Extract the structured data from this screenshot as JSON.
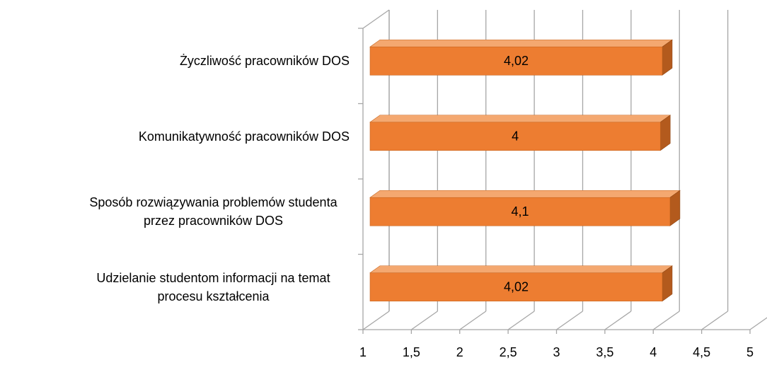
{
  "chart_data": {
    "type": "bar3d_horizontal",
    "categories": [
      "Życzliwość pracowników DOS",
      "Komunikatywność pracowników DOS",
      "Sposób rozwiązywania problemów studenta przez pracowników DOS",
      "Udzielanie studentom informacji na temat procesu kształcenia"
    ],
    "values": [
      4.02,
      4,
      4.1,
      4.02
    ],
    "value_labels": [
      "4,02",
      "4",
      "4,1",
      "4,02"
    ],
    "color": "#ed7d31",
    "xlim": [
      1,
      5
    ],
    "xticks": [
      1,
      {
        "value": 1.5,
        "label": "1,5"
      },
      2,
      {
        "value": 2.5,
        "label": "2,5"
      },
      3,
      {
        "value": 3.5,
        "label": "3,5"
      },
      4,
      {
        "value": 4.5,
        "label": "4,5"
      },
      5
    ],
    "grid": true
  }
}
